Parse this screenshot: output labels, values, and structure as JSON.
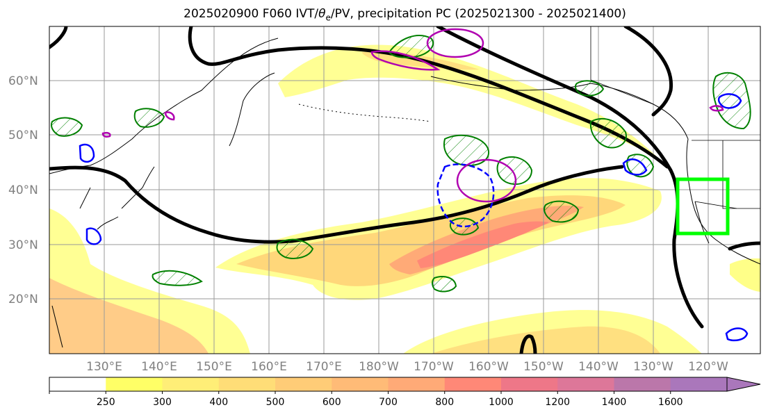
{
  "title": {
    "prefix": "2025020900 F060 IVT/",
    "theta": "θ",
    "sub": "e",
    "suffix": "/PV, precipitation PC (2025021300 - 2025021400)"
  },
  "map": {
    "lat_labels": [
      "60°N",
      "50°N",
      "40°N",
      "30°N",
      "20°N"
    ],
    "lon_labels": [
      "130°E",
      "140°E",
      "150°E",
      "160°E",
      "170°E",
      "180°W",
      "170°W",
      "160°W",
      "150°W",
      "140°W",
      "130°W",
      "120°W"
    ],
    "colors": {
      "pv_contour": "#000000",
      "theta_e_positive": "#008000",
      "theta_e_negative": "#0000ff",
      "pv_anomaly": "#b000b0",
      "target_box": "#00ff00"
    }
  },
  "colorbar": {
    "ticks": [
      "250",
      "300",
      "400",
      "500",
      "600",
      "700",
      "800",
      "1000",
      "1200",
      "1400",
      "1600"
    ],
    "colors": [
      "#ffffff",
      "#ffff66",
      "#ffee77",
      "#ffdd77",
      "#ffcc77",
      "#ffbb77",
      "#ffaa77",
      "#ff8877",
      "#ee7788",
      "#dd7799",
      "#bb77aa",
      "#aa77bb"
    ]
  }
}
